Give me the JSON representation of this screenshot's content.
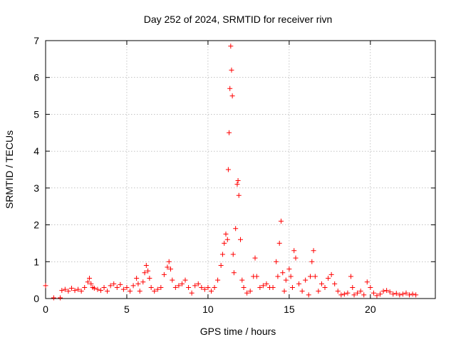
{
  "chart_data": {
    "type": "scatter",
    "title": "Day 252 of 2024, SRMTID for receiver rivn",
    "xlabel": "GPS time / hours",
    "ylabel": "SRMTID / TECUs",
    "xlim": [
      0,
      24
    ],
    "ylim": [
      0,
      7
    ],
    "xticks": [
      0,
      5,
      10,
      15,
      20
    ],
    "yticks": [
      0,
      1,
      2,
      3,
      4,
      5,
      6,
      7
    ],
    "grid": true,
    "marker": "+",
    "color": "#ff0000",
    "series": [
      {
        "x": [
          0.0,
          0.5,
          0.9,
          1.0,
          1.2,
          1.4,
          1.6,
          1.8,
          2.0,
          2.2,
          2.4,
          2.6,
          2.7,
          2.8,
          2.9,
          3.0,
          3.2,
          3.4,
          3.6,
          3.8,
          4.0,
          4.2,
          4.4,
          4.6,
          4.8,
          5.0,
          5.2,
          5.4,
          5.6,
          5.7,
          5.8,
          6.0,
          6.1,
          6.2,
          6.3,
          6.4,
          6.5,
          6.7,
          6.9,
          7.1,
          7.3,
          7.5,
          7.6,
          7.7,
          7.8,
          8.0,
          8.2,
          8.4,
          8.6,
          8.8,
          9.0,
          9.2,
          9.4,
          9.6,
          9.8,
          10.0,
          10.2,
          10.4,
          10.6,
          10.8,
          10.9,
          11.0,
          11.1,
          11.2,
          11.25,
          11.3,
          11.35,
          11.4,
          11.45,
          11.5,
          11.55,
          11.6,
          11.7,
          11.8,
          11.85,
          11.9,
          12.0,
          12.1,
          12.2,
          12.4,
          12.6,
          12.8,
          12.9,
          13.0,
          13.2,
          13.4,
          13.6,
          13.8,
          14.0,
          14.2,
          14.3,
          14.4,
          14.5,
          14.6,
          14.7,
          14.8,
          15.0,
          15.1,
          15.2,
          15.3,
          15.4,
          15.6,
          15.8,
          16.0,
          16.2,
          16.3,
          16.4,
          16.5,
          16.6,
          16.8,
          17.0,
          17.2,
          17.4,
          17.6,
          17.8,
          18.0,
          18.2,
          18.4,
          18.6,
          18.8,
          18.9,
          19.0,
          19.2,
          19.4,
          19.6,
          19.8,
          20.0,
          20.2,
          20.4,
          20.6,
          20.8,
          21.0,
          21.2,
          21.4,
          21.6,
          21.8,
          22.0,
          22.2,
          22.4,
          22.6,
          22.8
        ],
        "y": [
          0.35,
          0.02,
          0.02,
          0.22,
          0.25,
          0.2,
          0.28,
          0.22,
          0.25,
          0.2,
          0.3,
          0.45,
          0.55,
          0.4,
          0.3,
          0.28,
          0.25,
          0.22,
          0.3,
          0.2,
          0.35,
          0.4,
          0.3,
          0.38,
          0.25,
          0.3,
          0.2,
          0.35,
          0.55,
          0.4,
          0.2,
          0.45,
          0.7,
          0.9,
          0.75,
          0.55,
          0.3,
          0.2,
          0.25,
          0.3,
          0.65,
          0.85,
          1.0,
          0.8,
          0.5,
          0.3,
          0.35,
          0.4,
          0.5,
          0.3,
          0.15,
          0.35,
          0.4,
          0.3,
          0.25,
          0.3,
          0.2,
          0.3,
          0.5,
          0.9,
          1.2,
          1.5,
          1.75,
          1.6,
          3.5,
          4.5,
          5.7,
          6.85,
          6.2,
          5.5,
          1.2,
          0.7,
          1.9,
          3.1,
          3.2,
          2.8,
          1.6,
          0.5,
          0.3,
          0.15,
          0.2,
          0.6,
          1.1,
          0.6,
          0.3,
          0.35,
          0.4,
          0.3,
          0.3,
          1.0,
          0.6,
          1.5,
          2.1,
          0.7,
          0.2,
          0.5,
          0.8,
          0.6,
          0.3,
          1.3,
          1.1,
          0.4,
          0.2,
          0.5,
          0.1,
          0.6,
          1.0,
          1.3,
          0.6,
          0.2,
          0.4,
          0.3,
          0.55,
          0.65,
          0.4,
          0.2,
          0.1,
          0.12,
          0.15,
          0.6,
          0.3,
          0.1,
          0.15,
          0.2,
          0.1,
          0.45,
          0.3,
          0.15,
          0.08,
          0.12,
          0.2,
          0.22,
          0.18,
          0.12,
          0.14,
          0.1,
          0.12,
          0.15,
          0.1,
          0.12,
          0.1
        ]
      }
    ]
  }
}
